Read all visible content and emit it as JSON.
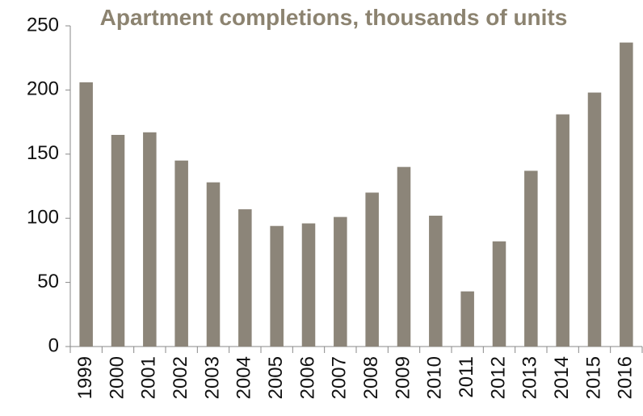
{
  "chart_data": {
    "type": "bar",
    "title": "Apartment completions, thousands of units",
    "categories": [
      "1999",
      "2000",
      "2001",
      "2002",
      "2003",
      "2004",
      "2005",
      "2006",
      "2007",
      "2008",
      "2009",
      "2010",
      "2011",
      "2012",
      "2013",
      "2014",
      "2015",
      "2016"
    ],
    "values": [
      206,
      165,
      167,
      145,
      128,
      107,
      94,
      96,
      101,
      120,
      140,
      102,
      43,
      82,
      137,
      181,
      198,
      237
    ],
    "color": "#8c8579",
    "ylim": [
      0,
      250
    ],
    "yticks": [
      0,
      50,
      100,
      150,
      200,
      250
    ],
    "grid": false
  }
}
